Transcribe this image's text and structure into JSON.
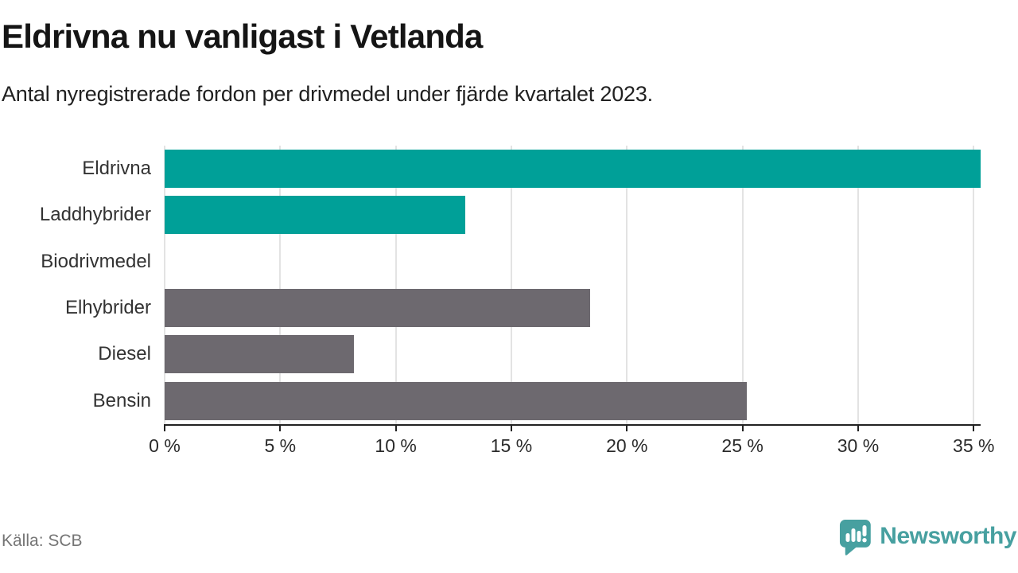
{
  "header": {
    "title": "Eldrivna nu vanligast i Vetlanda",
    "subtitle": "Antal nyregistrerade fordon per drivmedel under fjärde kvartalet 2023."
  },
  "chart_data": {
    "type": "bar",
    "orientation": "horizontal",
    "title": "Eldrivna nu vanligast i Vetlanda",
    "subtitle": "Antal nyregistrerade fordon per drivmedel under fjärde kvartalet 2023.",
    "categories": [
      "Eldrivna",
      "Laddhybrider",
      "Biodrivmedel",
      "Elhybrider",
      "Diesel",
      "Bensin"
    ],
    "values": [
      35.3,
      13.0,
      0,
      18.4,
      8.2,
      25.2
    ],
    "unit": "%",
    "bar_colors": [
      "#00a098",
      "#00a098",
      "#6d696f",
      "#6d696f",
      "#6d696f",
      "#6d696f"
    ],
    "xlim": [
      0,
      35.3
    ],
    "xticks": [
      0,
      5,
      10,
      15,
      20,
      25,
      30,
      35
    ],
    "xtick_labels": [
      "0 %",
      "5 %",
      "10 %",
      "15 %",
      "20 %",
      "25 %",
      "30 %",
      "35 %"
    ],
    "grid": "vertical",
    "legend": "none"
  },
  "colors": {
    "highlight": "#00a098",
    "neutral": "#6d696f",
    "gridline": "#e3e3e3",
    "axis": "#222222",
    "brand_teal": "#47a0a0",
    "muted_text": "#757575"
  },
  "footer": {
    "source": "Källa: SCB",
    "brand_name": "Newsworthy",
    "brand_icon": "speech-bubble-bar-chart-icon"
  }
}
